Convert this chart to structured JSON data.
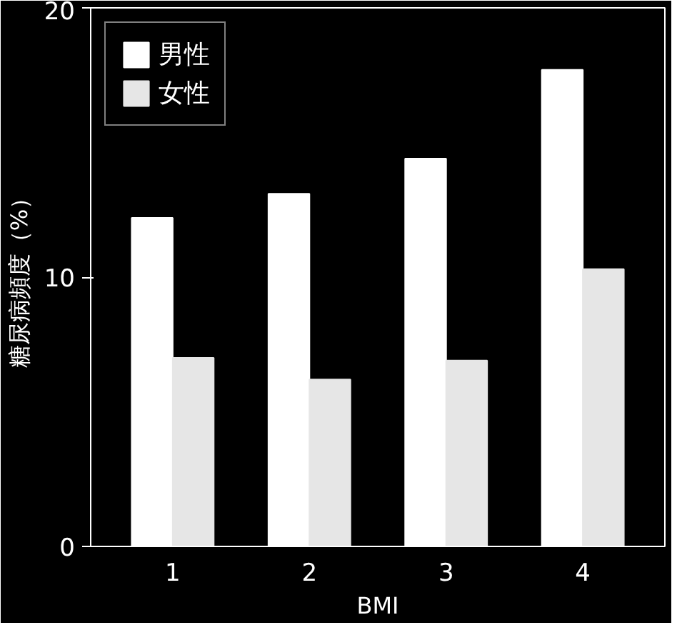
{
  "chart_data": {
    "type": "bar",
    "xlabel": "BMI",
    "ylabel": "糖尿病頻度（%）",
    "categories": [
      "1",
      "2",
      "3",
      "4"
    ],
    "series": [
      {
        "name": "男性",
        "color": "#ffffff",
        "values": [
          12.2,
          13.1,
          14.4,
          17.7
        ]
      },
      {
        "name": "女性",
        "color": "#e6e6e6",
        "values": [
          7.0,
          6.2,
          6.9,
          10.3
        ]
      }
    ],
    "ylim": [
      0,
      20
    ],
    "yticks": [
      0,
      10,
      20
    ],
    "grid": false,
    "legend": "top left"
  }
}
